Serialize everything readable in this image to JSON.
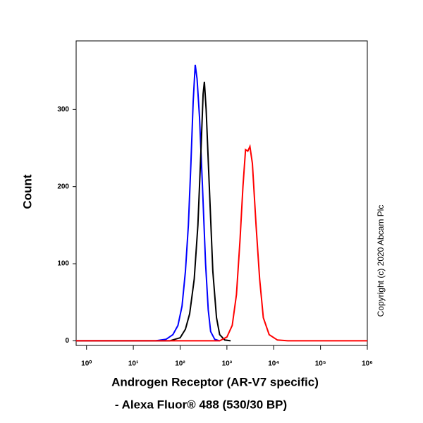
{
  "chart_data": {
    "type": "line",
    "y_label": "Count",
    "x_label": [
      "Androgen Receptor (AR-V7 specific)",
      "- Alexa Fluor® 488 (530/30 BP)"
    ],
    "note": "Copyright (c) 2020 Abcam Plc",
    "x_scale": "log",
    "xlim": [
      0.6,
      1000000
    ],
    "xticks": [
      {
        "value": 1,
        "label": "10⁰"
      },
      {
        "value": 10,
        "label": "10¹"
      },
      {
        "value": 100,
        "label": "10²"
      },
      {
        "value": 1000,
        "label": "10³"
      },
      {
        "value": 10000,
        "label": "10⁴"
      },
      {
        "value": 100000,
        "label": "10⁵"
      },
      {
        "value": 1000000,
        "label": "10⁶"
      }
    ],
    "ylim": [
      -6,
      389
    ],
    "yticks": [
      0,
      100,
      200,
      300
    ],
    "series": [
      {
        "color": "#0000ff",
        "x": [
          0.6,
          30,
          50,
          70,
          90,
          110,
          130,
          150,
          170,
          190,
          210,
          230,
          260,
          300,
          350,
          400,
          450,
          550,
          700
        ],
        "values": [
          0,
          0,
          2,
          8,
          20,
          45,
          90,
          150,
          230,
          310,
          358,
          340,
          290,
          200,
          100,
          40,
          12,
          2,
          0
        ]
      },
      {
        "color": "#000000",
        "x": [
          0.6,
          60,
          100,
          130,
          160,
          200,
          240,
          280,
          310,
          330,
          360,
          420,
          500,
          600,
          700,
          900,
          1200
        ],
        "values": [
          0,
          0,
          4,
          15,
          35,
          80,
          150,
          250,
          320,
          336,
          300,
          200,
          90,
          30,
          8,
          1,
          0
        ]
      },
      {
        "color": "#ff0000",
        "x": [
          0.6,
          700,
          1000,
          1300,
          1600,
          1900,
          2200,
          2500,
          2800,
          3100,
          3500,
          4200,
          5000,
          6000,
          8000,
          12000,
          20000,
          1000000
        ],
        "values": [
          0,
          0,
          5,
          20,
          60,
          130,
          200,
          248,
          246,
          252,
          230,
          150,
          80,
          30,
          8,
          1,
          0,
          0
        ]
      }
    ]
  }
}
